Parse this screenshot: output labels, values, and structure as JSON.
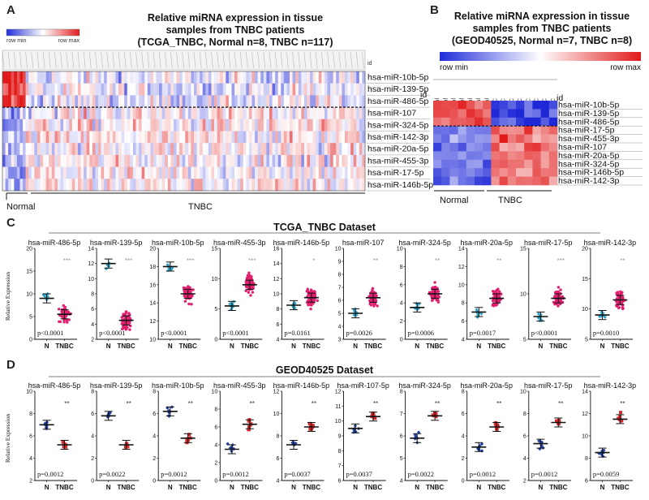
{
  "panel_a": {
    "letter": "A",
    "title_lines": [
      "Relative miRNA expression in tissue",
      "samples from TNBC patients",
      "(TCGA_TNBC, Normal n=8, TNBC n=117)"
    ],
    "legend_min": "row min",
    "legend_max": "row max",
    "id_label": "id",
    "genes": [
      "hsa-miR-10b-5p",
      "hsa-miR-139-5p",
      "hsa-miR-486-5p",
      "hsa-miR-107",
      "hsa-miR-324-5p",
      "hsa-miR-142-3p",
      "hsa-miR-20a-5p",
      "hsa-miR-455-3p",
      "hsa-miR-17-5p",
      "hsa-miR-146b-5p"
    ],
    "group_normal": "Normal",
    "group_tnbc": "TNBC"
  },
  "panel_b": {
    "letter": "B",
    "title_lines": [
      "Relative miRNA expression in tissue",
      "samples from TNBC patients",
      "(GEOD40525, Normal n=7, TNBC n=8)"
    ],
    "legend_min": "row min",
    "legend_max": "row max",
    "id_label": "id",
    "column_labels": [
      "Normal",
      "Normal",
      "Normal",
      "Normal",
      "Normal",
      "Normal",
      "Normal",
      "TNBC",
      "TNBC",
      "TNBC",
      "TNBC",
      "TNBC",
      "TNBC",
      "TNBC",
      "TNBC"
    ],
    "genes": [
      "hsa-miR-10b-5p",
      "hsa-miR-139-5p",
      "hsa-miR-486-5p",
      "hsa-miR-17-5p",
      "hsa-miR-455-3p",
      "hsa-miR-107",
      "hsa-miR-20a-5p",
      "hsa-miR-324-5p",
      "hsa-miR-146b-5p",
      "hsa-miR-142-3p"
    ],
    "group_normal": "Normal",
    "group_tnbc": "TNBC"
  },
  "panel_c": {
    "letter": "C",
    "title": "TCGA_TNBC Dataset",
    "y_label": "Relative Expression",
    "x_labels": [
      "N",
      "TNBC"
    ],
    "plots": [
      {
        "name": "hsa-miR-486-5p",
        "yticks": [
          "20",
          "15",
          "10",
          "5",
          "0"
        ],
        "n_mean": 9,
        "t_mean": 5.5,
        "sig": "***",
        "p": "p<0.0001"
      },
      {
        "name": "hsa-miR-139-5p",
        "yticks": [
          "14",
          "12",
          "10",
          "8",
          "6",
          "4",
          "2"
        ],
        "n_mean": 12,
        "t_mean": 4.5,
        "sig": "***",
        "p": "p<0.0001"
      },
      {
        "name": "hsa-miR-10b-5p",
        "yticks": [
          "20",
          "18",
          "16",
          "14",
          "12",
          "10"
        ],
        "n_mean": 18,
        "t_mean": 15,
        "sig": "***",
        "p": "p<0.0001"
      },
      {
        "name": "hsa-miR-455-3p",
        "yticks": [
          "15",
          "10",
          "5",
          "0"
        ],
        "n_mean": 5.5,
        "t_mean": 9,
        "sig": "***",
        "p": "p<0.0001"
      },
      {
        "name": "hsa-miR-146b-5p",
        "yticks": [
          "16",
          "14",
          "12",
          "10",
          "8",
          "6",
          "4"
        ],
        "n_mean": 8.5,
        "t_mean": 9.5,
        "sig": "*",
        "p": "p=0.0161"
      },
      {
        "name": "hsa-miR-107",
        "yticks": [
          "10",
          "9",
          "8",
          "7",
          "6",
          "5",
          "4",
          "3"
        ],
        "n_mean": 5,
        "t_mean": 6.2,
        "sig": "**",
        "p": "p=0.0026"
      },
      {
        "name": "hsa-miR-324-5p",
        "yticks": [
          "10",
          "8",
          "6",
          "4",
          "2",
          "0"
        ],
        "n_mean": 3.5,
        "t_mean": 5,
        "sig": "**",
        "p": "p=0.0006"
      },
      {
        "name": "hsa-miR-20a-5p",
        "yticks": [
          "14",
          "12",
          "10",
          "8",
          "6",
          "4"
        ],
        "n_mean": 7,
        "t_mean": 8.5,
        "sig": "**",
        "p": "p=0.0017"
      },
      {
        "name": "hsa-miR-17-5p",
        "yticks": [
          "15",
          "10",
          "5"
        ],
        "n_mean": 7.5,
        "t_mean": 9.5,
        "sig": "***",
        "p": "p<0.0001"
      },
      {
        "name": "hsa-miR-142-3p",
        "yticks": [
          "20",
          "15",
          "10",
          "5"
        ],
        "n_mean": 9,
        "t_mean": 11.5,
        "sig": "**",
        "p": "p=0.0010"
      }
    ]
  },
  "panel_d": {
    "letter": "D",
    "title": "GEOD40525 Dataset",
    "y_label": "Relative Expression",
    "x_labels": [
      "N",
      "TNBC"
    ],
    "plots": [
      {
        "name": "hsa-miR-486-5p",
        "yticks": [
          "10",
          "8",
          "6",
          "4",
          "2"
        ],
        "n_mean": 7,
        "t_mean": 5.2,
        "sig": "**",
        "p": "p=0.0012"
      },
      {
        "name": "hsa-miR-139-5p",
        "yticks": [
          "8",
          "6",
          "4",
          "2",
          "0"
        ],
        "n_mean": 5.8,
        "t_mean": 3.2,
        "sig": "**",
        "p": "p=0.0022"
      },
      {
        "name": "hsa-miR-10b-5p",
        "yticks": [
          "8",
          "6",
          "4",
          "2",
          "0"
        ],
        "n_mean": 6.2,
        "t_mean": 3.8,
        "sig": "**",
        "p": "p=0.0012"
      },
      {
        "name": "hsa-miR-455-3p",
        "yticks": [
          "10",
          "8",
          "6",
          "4",
          "2",
          "0"
        ],
        "n_mean": 3.5,
        "t_mean": 6.3,
        "sig": "**",
        "p": "p=0.0012"
      },
      {
        "name": "hsa-miR-146b-5p",
        "yticks": [
          "12",
          "10",
          "8",
          "6",
          "4"
        ],
        "n_mean": 7.2,
        "t_mean": 8.8,
        "sig": "**",
        "p": "p=0.0037"
      },
      {
        "name": "hsa-miR-107-5p",
        "yticks": [
          "12",
          "11",
          "10",
          "9",
          "8",
          "7",
          "6"
        ],
        "n_mean": 9.5,
        "t_mean": 10.3,
        "sig": "**",
        "p": "p=0.0037"
      },
      {
        "name": "hsa-miR-324-5p",
        "yticks": [
          "8",
          "7",
          "6",
          "5",
          "4"
        ],
        "n_mean": 5.9,
        "t_mean": 6.9,
        "sig": "**",
        "p": "p=0.0022"
      },
      {
        "name": "hsa-miR-20a-5p",
        "yticks": [
          "8",
          "6",
          "4",
          "2",
          "0"
        ],
        "n_mean": 3,
        "t_mean": 4.8,
        "sig": "**",
        "p": "p=0.0012"
      },
      {
        "name": "hsa-miR-17-5p",
        "yticks": [
          "10",
          "8",
          "6",
          "4",
          "2"
        ],
        "n_mean": 5.3,
        "t_mean": 7.2,
        "sig": "**",
        "p": "p=0.0012"
      },
      {
        "name": "hsa-miR-142-3p",
        "yticks": [
          "14",
          "12",
          "10",
          "8",
          "6"
        ],
        "n_mean": 8.5,
        "t_mean": 11.5,
        "sig": "**",
        "p": "p=0.0059"
      }
    ]
  },
  "colors": {
    "blue": "#1f2bd9",
    "red": "#e11a1a",
    "n_dot_c": "#2aa7c9",
    "t_dot_c": "#e0206f",
    "n_dot_d": "#1f3fa8",
    "t_dot_d": "#d62828"
  }
}
